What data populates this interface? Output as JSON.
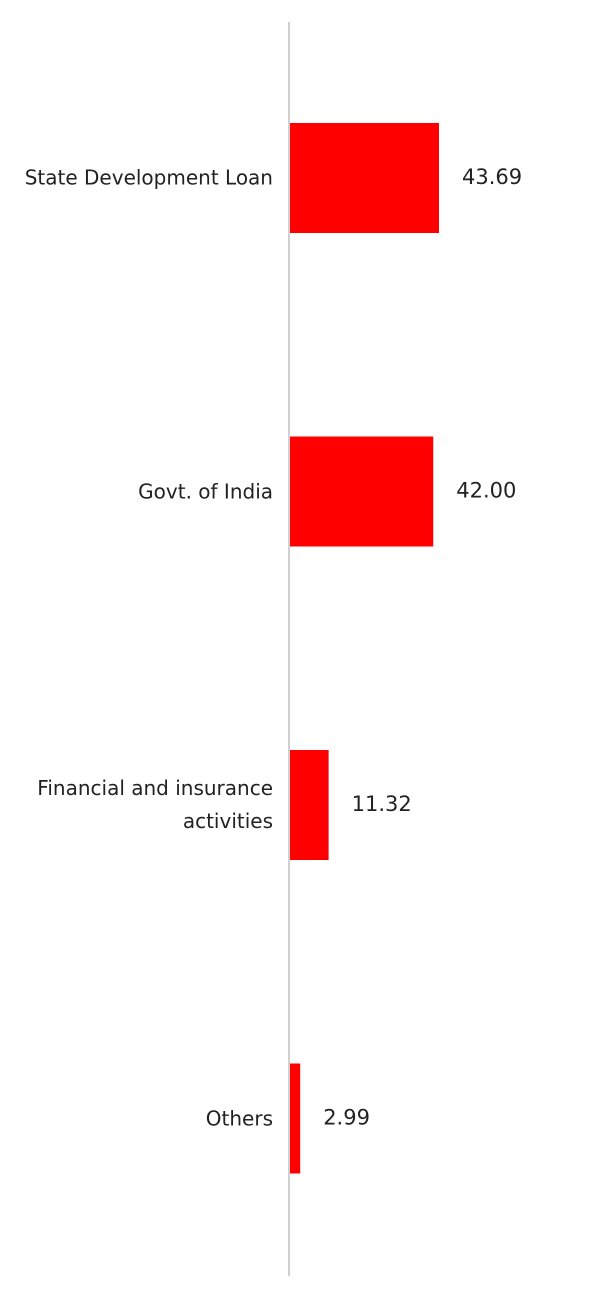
{
  "chart_data": {
    "type": "bar",
    "orientation": "horizontal",
    "categories": [
      "State Development Loan",
      "Govt. of India",
      "Financial and insurance activities",
      "Others"
    ],
    "values": [
      43.69,
      42.0,
      11.32,
      2.99
    ],
    "value_labels": [
      "43.69",
      "42.00",
      "11.32",
      "2.99"
    ],
    "color": "#ff0000"
  }
}
